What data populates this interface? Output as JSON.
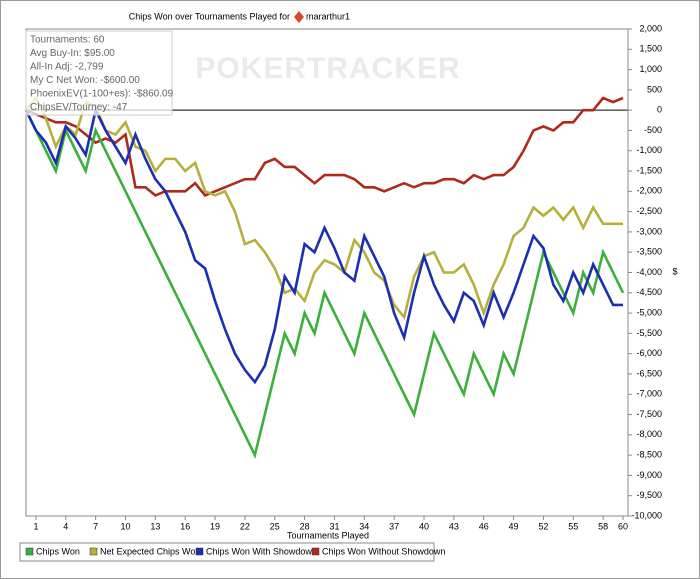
{
  "chart_data": {
    "type": "line",
    "title": "Chips Won over Tournaments Played for",
    "player": "mararthur1",
    "watermark": "POKERTRACKER",
    "info_box": [
      "Tournaments: 60",
      "Avg Buy-In: $95.00",
      "All-In Adj: -2,799",
      "My C Net Won: -$600.00",
      "PhoenixEV(1-100+es): -$860.09",
      "ChipsEV/Tourney: -47"
    ],
    "x_label": "Tournaments Played",
    "y_label": "$",
    "x": [
      0,
      1,
      2,
      3,
      4,
      5,
      6,
      7,
      8,
      9,
      10,
      11,
      12,
      13,
      14,
      15,
      16,
      17,
      18,
      19,
      20,
      21,
      22,
      23,
      24,
      25,
      26,
      27,
      28,
      29,
      30,
      31,
      32,
      33,
      34,
      35,
      36,
      37,
      38,
      39,
      40,
      41,
      42,
      43,
      44,
      45,
      46,
      47,
      48,
      49,
      50,
      51,
      52,
      53,
      54,
      55,
      56,
      57,
      58,
      59,
      60
    ],
    "xlim": [
      0,
      60.5
    ],
    "xticks": [
      1,
      4,
      7,
      10,
      13,
      16,
      19,
      22,
      25,
      28,
      31,
      34,
      37,
      40,
      43,
      46,
      49,
      52,
      55,
      58,
      60
    ],
    "ylim": [
      -10000,
      2000
    ],
    "yticks": [
      {
        "value": 2000,
        "label": "2,000"
      },
      {
        "value": 1500,
        "label": "1,500"
      },
      {
        "value": 1000,
        "label": "1,000"
      },
      500,
      0,
      -500,
      {
        "value": -1000,
        "label": "-1,000"
      },
      {
        "value": -1500,
        "label": "-1,500"
      },
      {
        "value": -2000,
        "label": "-2,000"
      },
      {
        "value": -2500,
        "label": "-2,500"
      },
      {
        "value": -3000,
        "label": "-3,000"
      },
      {
        "value": -3500,
        "label": "-3,500"
      },
      {
        "value": -4000,
        "label": "-4,000"
      },
      {
        "value": -4500,
        "label": "-4,500"
      },
      {
        "value": -5000,
        "label": "-5,000"
      },
      {
        "value": -5500,
        "label": "-5,500"
      },
      {
        "value": -6000,
        "label": "-6,000"
      },
      {
        "value": -6500,
        "label": "-6,500"
      },
      {
        "value": -7000,
        "label": "-7,000"
      },
      {
        "value": -7500,
        "label": "-7,500"
      },
      {
        "value": -8000,
        "label": "-8,000"
      },
      {
        "value": -8500,
        "label": "-8,500"
      },
      {
        "value": -9000,
        "label": "-9,000"
      },
      {
        "value": -9500,
        "label": "-9,500"
      },
      {
        "value": -10000,
        "label": "-10,000"
      }
    ],
    "grid": false,
    "series": [
      {
        "name": "Chips Won",
        "color": "#3cb03c",
        "values": [
          0,
          -500,
          -1000,
          -1500,
          -500,
          -1000,
          -1500,
          -500,
          -1000,
          -1500,
          -2000,
          -2500,
          -3000,
          -3500,
          -4000,
          -4500,
          -5000,
          -5500,
          -6000,
          -6500,
          -7000,
          -7500,
          -8000,
          -8500,
          -7500,
          -6500,
          -5500,
          -6000,
          -5000,
          -5500,
          -4500,
          -5000,
          -5500,
          -6000,
          -5000,
          -5500,
          -6000,
          -6500,
          -7000,
          -7500,
          -6500,
          -5500,
          -6000,
          -6500,
          -7000,
          -6000,
          -6500,
          -7000,
          -6000,
          -6500,
          -5500,
          -4500,
          -3500,
          -4000,
          -4500,
          -5000,
          -4000,
          -4500,
          -3500,
          -4000,
          -4500
        ]
      },
      {
        "name": "Net Expected Chips Won",
        "color": "#b5b03c",
        "values": [
          0,
          300,
          -200,
          -900,
          -400,
          -600,
          200,
          100,
          -500,
          -600,
          -300,
          -900,
          -1000,
          -1500,
          -1200,
          -1200,
          -1500,
          -1300,
          -2000,
          -2100,
          -2000,
          -2500,
          -3300,
          -3200,
          -3500,
          -3900,
          -4500,
          -4400,
          -4700,
          -4000,
          -3700,
          -3800,
          -4000,
          -3200,
          -3500,
          -4000,
          -4200,
          -4800,
          -5100,
          -4100,
          -3600,
          -3500,
          -4000,
          -4000,
          -3800,
          -4300,
          -5000,
          -4300,
          -3800,
          -3100,
          -2900,
          -2400,
          -2600,
          -2400,
          -2700,
          -2400,
          -2900,
          -2400,
          -2800,
          -2800,
          -2800
        ]
      },
      {
        "name": "Chips Won With Showdown",
        "color": "#1c2fb0",
        "values": [
          0,
          -500,
          -800,
          -1300,
          -400,
          -700,
          -1100,
          0,
          -500,
          -900,
          -1300,
          -600,
          -1200,
          -1700,
          -2000,
          -2500,
          -3000,
          -3700,
          -3900,
          -4700,
          -5400,
          -6000,
          -6400,
          -6700,
          -6300,
          -5400,
          -4100,
          -4500,
          -3300,
          -3500,
          -2900,
          -3400,
          -4000,
          -4200,
          -3100,
          -3600,
          -4100,
          -5000,
          -5600,
          -4500,
          -3600,
          -4300,
          -4800,
          -5200,
          -4500,
          -4700,
          -5300,
          -4500,
          -5100,
          -4500,
          -3800,
          -3100,
          -3400,
          -4300,
          -4700,
          -4000,
          -4500,
          -3800,
          -4300,
          -4800,
          -4800
        ]
      },
      {
        "name": "Chips Won Without Showdown",
        "color": "#b02a1c",
        "values": [
          0,
          -100,
          -200,
          -300,
          -300,
          -400,
          -600,
          -800,
          -700,
          -800,
          -600,
          -1900,
          -1900,
          -2100,
          -2000,
          -2000,
          -2000,
          -1800,
          -2100,
          -2000,
          -1900,
          -1800,
          -1700,
          -1700,
          -1300,
          -1200,
          -1400,
          -1400,
          -1600,
          -1800,
          -1600,
          -1600,
          -1600,
          -1700,
          -1900,
          -1900,
          -2000,
          -1900,
          -1800,
          -1900,
          -1800,
          -1800,
          -1700,
          -1700,
          -1800,
          -1600,
          -1700,
          -1600,
          -1600,
          -1400,
          -1000,
          -500,
          -400,
          -500,
          -300,
          -300,
          0,
          0,
          300,
          200,
          300
        ]
      }
    ]
  }
}
